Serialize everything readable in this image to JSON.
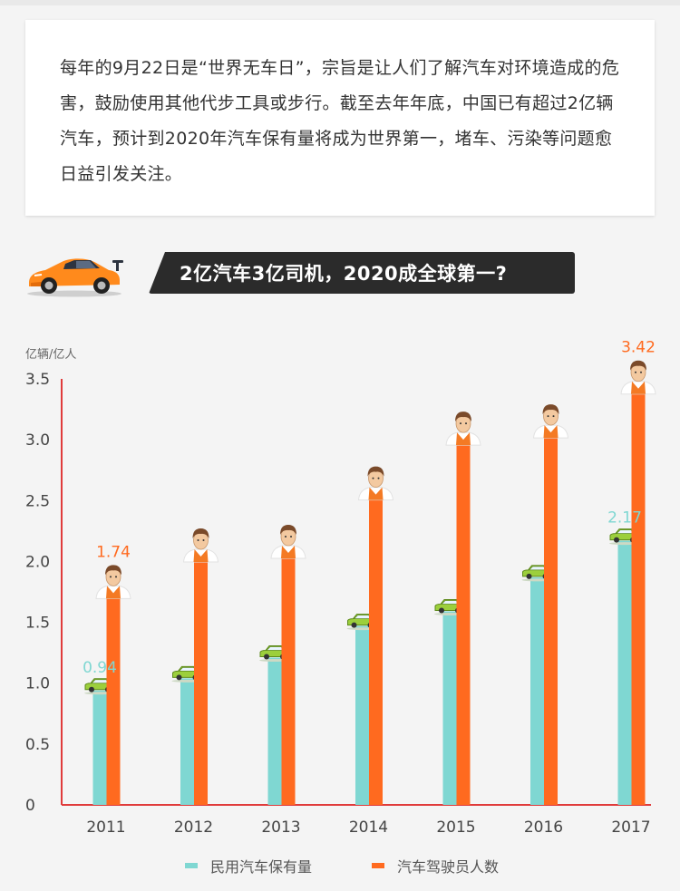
{
  "intro": {
    "text": "每年的9月22日是“世界无车日”，宗旨是让人们了解汽车对环境造成的危害，鼓励使用其他代步工具或步行。截至去年年底，中国已有超过2亿辆汽车，预计到2020年汽车保有量将成为世界第一，堵车、污染等问题愈日益引发关注。"
  },
  "section": {
    "title": "2亿汽车3亿司机，2020成全球第一?",
    "logo_icon": "orange-sports-car-icon"
  },
  "colors": {
    "cars": "#7fd7d2",
    "drivers": "#ff6a1f",
    "axis": "#e03b3b",
    "driver_label": "#ff6a1f",
    "car_label": "#7fd7d2"
  },
  "chart_data": {
    "type": "bar",
    "ylabel": "亿辆/亿人",
    "ylim": [
      0,
      3.5
    ],
    "yticks": [
      "0",
      "0.5",
      "1.0",
      "1.5",
      "2.0",
      "2.5",
      "3.0",
      "3.5"
    ],
    "categories": [
      "2011",
      "2012",
      "2013",
      "2014",
      "2015",
      "2016",
      "2017"
    ],
    "series": [
      {
        "name": "民用汽车保有量",
        "values": [
          0.94,
          1.04,
          1.21,
          1.47,
          1.59,
          1.87,
          2.17
        ],
        "icon": "green-car-icon"
      },
      {
        "name": "汽车驾驶员人数",
        "values": [
          1.74,
          2.04,
          2.07,
          2.55,
          3.0,
          3.06,
          3.42
        ],
        "icon": "driver-avatar-icon"
      }
    ],
    "data_labels": [
      {
        "series": 0,
        "index": 0,
        "text": "0.94"
      },
      {
        "series": 0,
        "index": 6,
        "text": "2.17"
      },
      {
        "series": 1,
        "index": 0,
        "text": "1.74"
      },
      {
        "series": 1,
        "index": 6,
        "text": "3.42"
      }
    ],
    "grid": false,
    "legend_position": "bottom-center"
  }
}
